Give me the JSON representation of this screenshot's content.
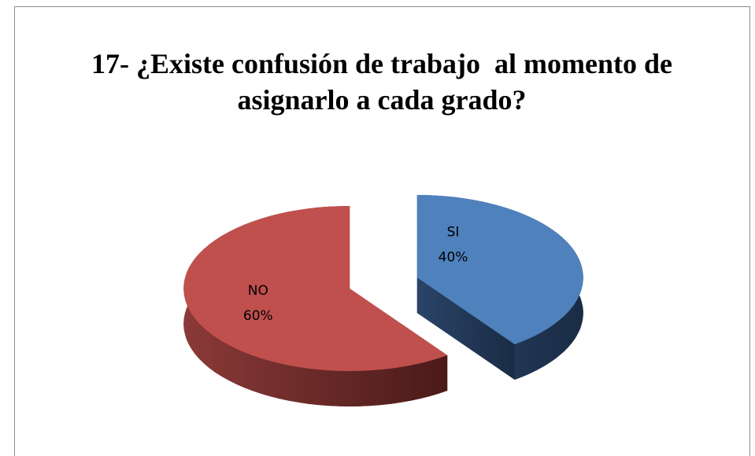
{
  "chart_data": {
    "type": "pie",
    "title": "17- ¿Existe confusión de trabajo  al momento de asignarlo a cada grado?",
    "categories": [
      "SI",
      "NO"
    ],
    "values": [
      40,
      60
    ],
    "value_labels": [
      "40%",
      "60%"
    ],
    "colors": [
      "#4f81bd",
      "#c0504d"
    ],
    "three_d": true,
    "exploded": true
  }
}
